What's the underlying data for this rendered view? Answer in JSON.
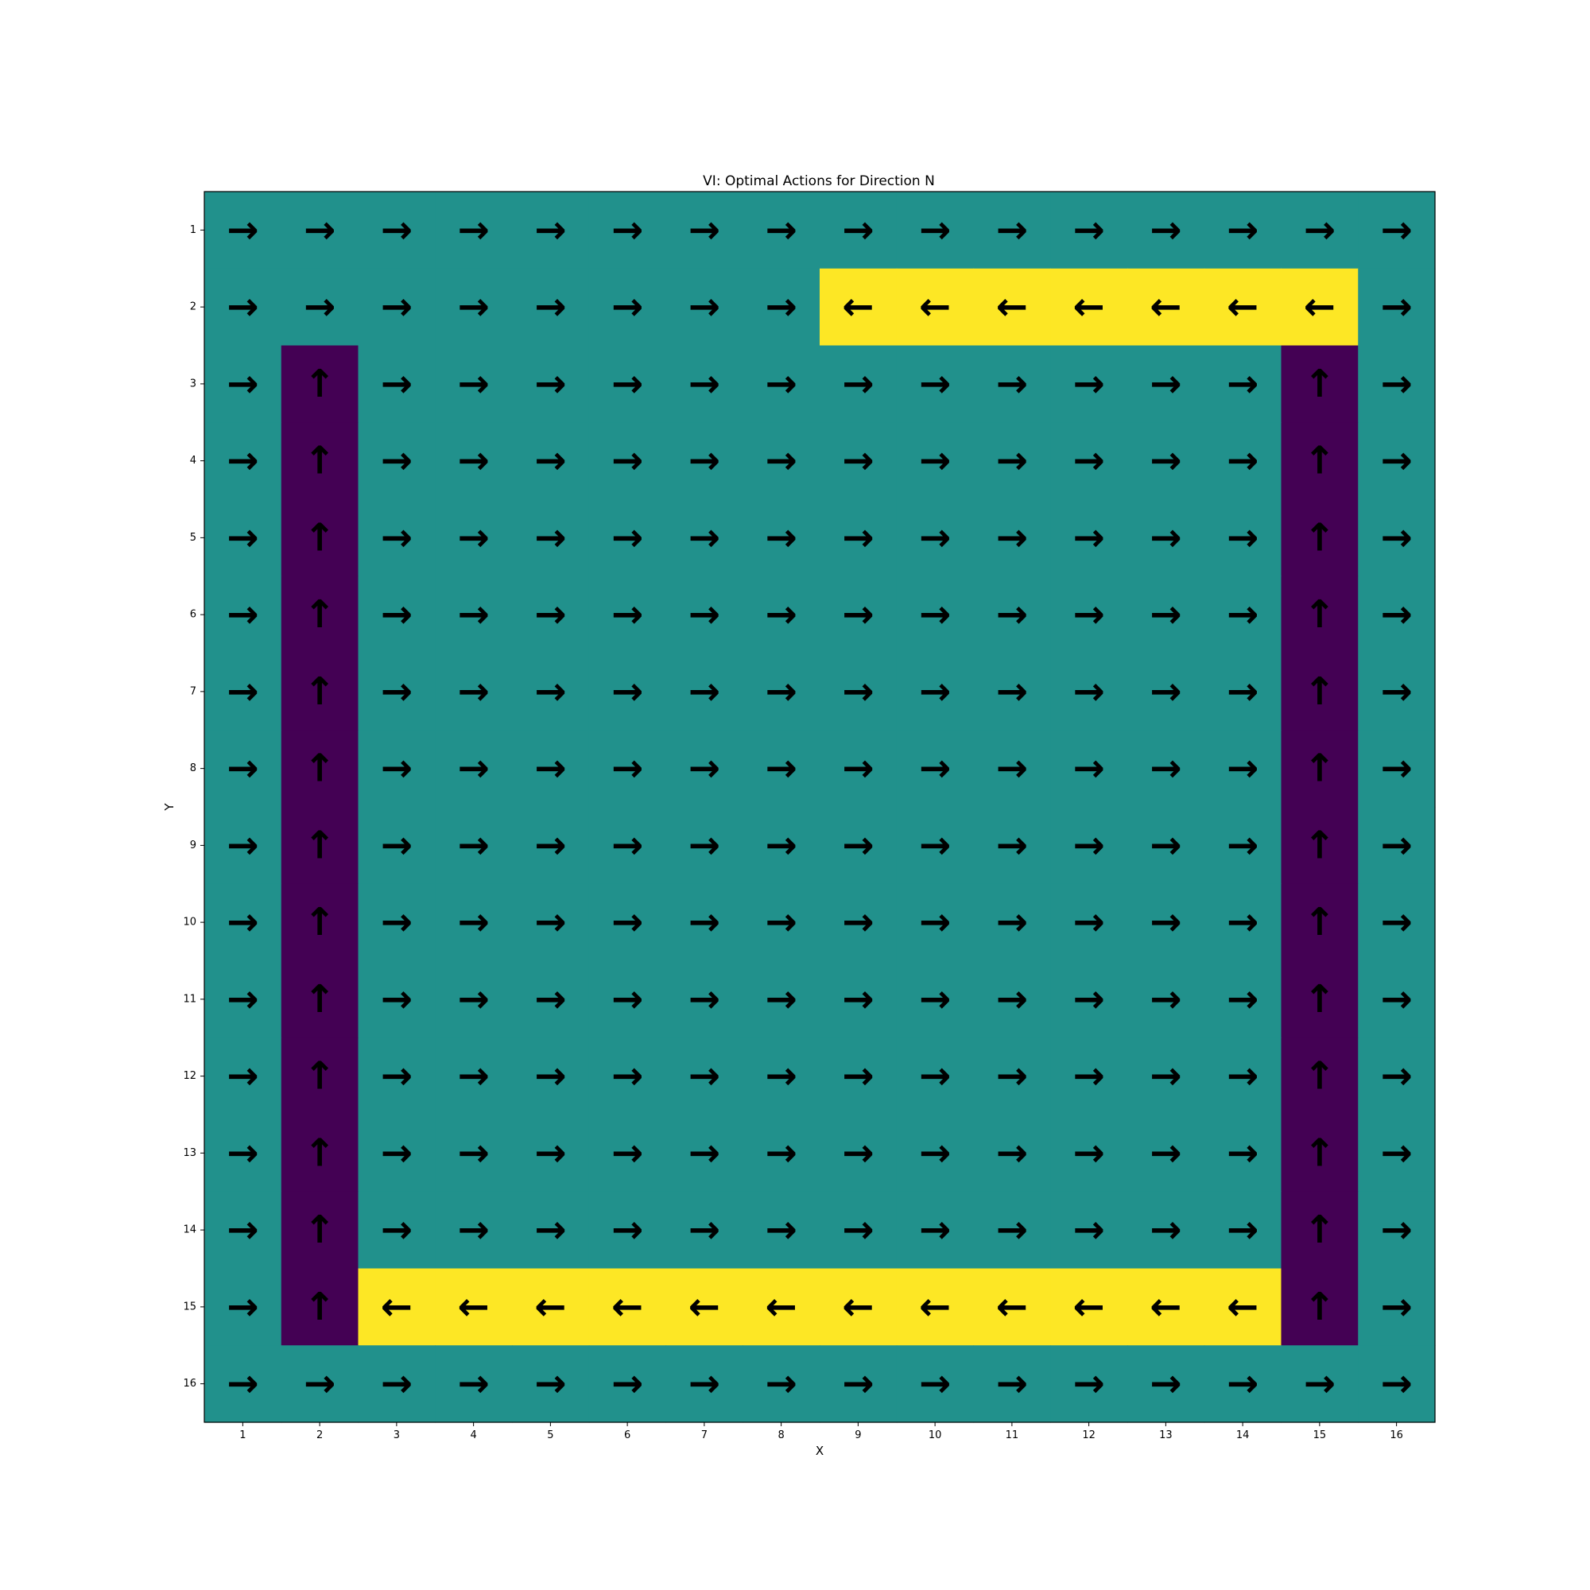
{
  "chart_data": {
    "type": "heatmap",
    "title": "VI: Optimal Actions for Direction N",
    "xlabel": "X",
    "ylabel": "Y",
    "x_ticks": [
      1,
      2,
      3,
      4,
      5,
      6,
      7,
      8,
      9,
      10,
      11,
      12,
      13,
      14,
      15,
      16
    ],
    "y_ticks": [
      1,
      2,
      3,
      4,
      5,
      6,
      7,
      8,
      9,
      10,
      11,
      12,
      13,
      14,
      15,
      16
    ],
    "y_axis_inverted": true,
    "grid": false,
    "colors": {
      "level_0": "#440154",
      "level_1": "#21918c",
      "level_2": "#fde725"
    },
    "cell_levels": [
      [
        1,
        1,
        1,
        1,
        1,
        1,
        1,
        1,
        1,
        1,
        1,
        1,
        1,
        1,
        1,
        1
      ],
      [
        1,
        1,
        1,
        1,
        1,
        1,
        1,
        1,
        2,
        2,
        2,
        2,
        2,
        2,
        2,
        1
      ],
      [
        1,
        0,
        1,
        1,
        1,
        1,
        1,
        1,
        1,
        1,
        1,
        1,
        1,
        1,
        0,
        1
      ],
      [
        1,
        0,
        1,
        1,
        1,
        1,
        1,
        1,
        1,
        1,
        1,
        1,
        1,
        1,
        0,
        1
      ],
      [
        1,
        0,
        1,
        1,
        1,
        1,
        1,
        1,
        1,
        1,
        1,
        1,
        1,
        1,
        0,
        1
      ],
      [
        1,
        0,
        1,
        1,
        1,
        1,
        1,
        1,
        1,
        1,
        1,
        1,
        1,
        1,
        0,
        1
      ],
      [
        1,
        0,
        1,
        1,
        1,
        1,
        1,
        1,
        1,
        1,
        1,
        1,
        1,
        1,
        0,
        1
      ],
      [
        1,
        0,
        1,
        1,
        1,
        1,
        1,
        1,
        1,
        1,
        1,
        1,
        1,
        1,
        0,
        1
      ],
      [
        1,
        0,
        1,
        1,
        1,
        1,
        1,
        1,
        1,
        1,
        1,
        1,
        1,
        1,
        0,
        1
      ],
      [
        1,
        0,
        1,
        1,
        1,
        1,
        1,
        1,
        1,
        1,
        1,
        1,
        1,
        1,
        0,
        1
      ],
      [
        1,
        0,
        1,
        1,
        1,
        1,
        1,
        1,
        1,
        1,
        1,
        1,
        1,
        1,
        0,
        1
      ],
      [
        1,
        0,
        1,
        1,
        1,
        1,
        1,
        1,
        1,
        1,
        1,
        1,
        1,
        1,
        0,
        1
      ],
      [
        1,
        0,
        1,
        1,
        1,
        1,
        1,
        1,
        1,
        1,
        1,
        1,
        1,
        1,
        0,
        1
      ],
      [
        1,
        0,
        1,
        1,
        1,
        1,
        1,
        1,
        1,
        1,
        1,
        1,
        1,
        1,
        0,
        1
      ],
      [
        1,
        0,
        2,
        2,
        2,
        2,
        2,
        2,
        2,
        2,
        2,
        2,
        2,
        2,
        0,
        1
      ],
      [
        1,
        1,
        1,
        1,
        1,
        1,
        1,
        1,
        1,
        1,
        1,
        1,
        1,
        1,
        1,
        1
      ]
    ],
    "cell_arrows": [
      [
        "→",
        "→",
        "→",
        "→",
        "→",
        "→",
        "→",
        "→",
        "→",
        "→",
        "→",
        "→",
        "→",
        "→",
        "→",
        "→"
      ],
      [
        "→",
        "→",
        "→",
        "→",
        "→",
        "→",
        "→",
        "→",
        "←",
        "←",
        "←",
        "←",
        "←",
        "←",
        "←",
        "→"
      ],
      [
        "→",
        "↑",
        "→",
        "→",
        "→",
        "→",
        "→",
        "→",
        "→",
        "→",
        "→",
        "→",
        "→",
        "→",
        "↑",
        "→"
      ],
      [
        "→",
        "↑",
        "→",
        "→",
        "→",
        "→",
        "→",
        "→",
        "→",
        "→",
        "→",
        "→",
        "→",
        "→",
        "↑",
        "→"
      ],
      [
        "→",
        "↑",
        "→",
        "→",
        "→",
        "→",
        "→",
        "→",
        "→",
        "→",
        "→",
        "→",
        "→",
        "→",
        "↑",
        "→"
      ],
      [
        "→",
        "↑",
        "→",
        "→",
        "→",
        "→",
        "→",
        "→",
        "→",
        "→",
        "→",
        "→",
        "→",
        "→",
        "↑",
        "→"
      ],
      [
        "→",
        "↑",
        "→",
        "→",
        "→",
        "→",
        "→",
        "→",
        "→",
        "→",
        "→",
        "→",
        "→",
        "→",
        "↑",
        "→"
      ],
      [
        "→",
        "↑",
        "→",
        "→",
        "→",
        "→",
        "→",
        "→",
        "→",
        "→",
        "→",
        "→",
        "→",
        "→",
        "↑",
        "→"
      ],
      [
        "→",
        "↑",
        "→",
        "→",
        "→",
        "→",
        "→",
        "→",
        "→",
        "→",
        "→",
        "→",
        "→",
        "→",
        "↑",
        "→"
      ],
      [
        "→",
        "↑",
        "→",
        "→",
        "→",
        "→",
        "→",
        "→",
        "→",
        "→",
        "→",
        "→",
        "→",
        "→",
        "↑",
        "→"
      ],
      [
        "→",
        "↑",
        "→",
        "→",
        "→",
        "→",
        "→",
        "→",
        "→",
        "→",
        "→",
        "→",
        "→",
        "→",
        "↑",
        "→"
      ],
      [
        "→",
        "↑",
        "→",
        "→",
        "→",
        "→",
        "→",
        "→",
        "→",
        "→",
        "→",
        "→",
        "→",
        "→",
        "↑",
        "→"
      ],
      [
        "→",
        "↑",
        "→",
        "→",
        "→",
        "→",
        "→",
        "→",
        "→",
        "→",
        "→",
        "→",
        "→",
        "→",
        "↑",
        "→"
      ],
      [
        "→",
        "↑",
        "→",
        "→",
        "→",
        "→",
        "→",
        "→",
        "→",
        "→",
        "→",
        "→",
        "→",
        "→",
        "↑",
        "→"
      ],
      [
        "→",
        "↑",
        "←",
        "←",
        "←",
        "←",
        "←",
        "←",
        "←",
        "←",
        "←",
        "←",
        "←",
        "←",
        "↑",
        "→"
      ],
      [
        "→",
        "→",
        "→",
        "→",
        "→",
        "→",
        "→",
        "→",
        "→",
        "→",
        "→",
        "→",
        "→",
        "→",
        "→",
        "→"
      ]
    ]
  }
}
